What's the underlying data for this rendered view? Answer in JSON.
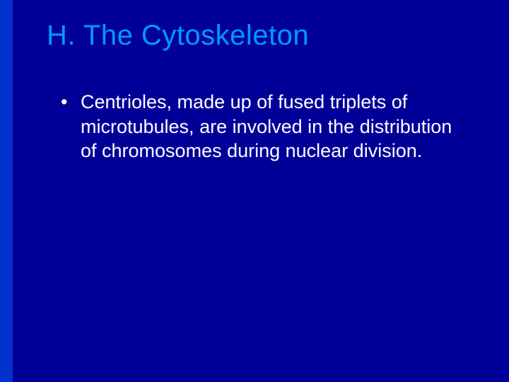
{
  "slide": {
    "background_color": "#000099",
    "left_stripe_color": "#0033cc",
    "title": "H. The Cytoskeleton",
    "title_color": "#0099ff",
    "body_text_color": "#ffffff",
    "bullets": [
      {
        "text": "Centrioles, made up of fused triplets of microtubules, are involved in the distribution of chromosomes during nuclear division."
      }
    ]
  }
}
